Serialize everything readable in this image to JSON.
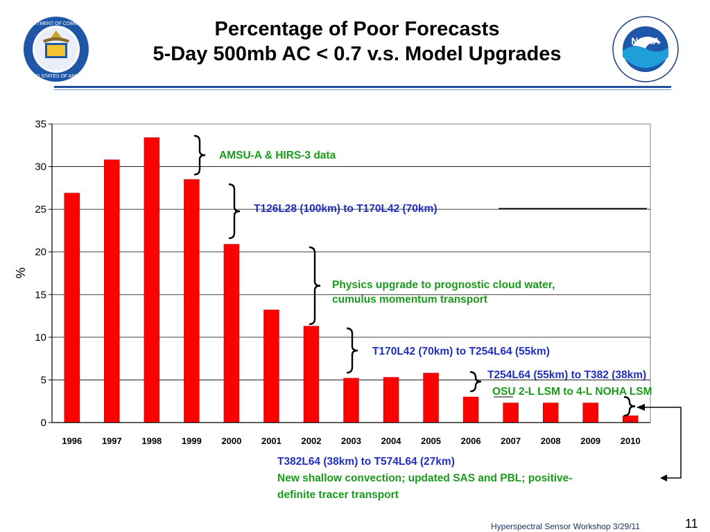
{
  "slide": {
    "title_line1": "Percentage of Poor Forecasts",
    "title_line2": "5-Day 500mb AC < 0.7 v.s. Model Upgrades",
    "footer": "Hyperspectral Sensor Workshop 3/29/11",
    "page_number": "11",
    "logo_left": {
      "name": "department-of-commerce-seal",
      "text": "DEPARTMENT OF COMMERCE · UNITED STATES OF AMERICA"
    },
    "logo_right": {
      "name": "noaa-logo",
      "text": "NOAA"
    }
  },
  "chart_data": {
    "type": "bar",
    "categories": [
      "1996",
      "1997",
      "1998",
      "1999",
      "2000",
      "2001",
      "2002",
      "2003",
      "2004",
      "2005",
      "2006",
      "2007",
      "2008",
      "2009",
      "2010"
    ],
    "values": [
      26.9,
      30.8,
      33.4,
      28.5,
      20.9,
      13.2,
      11.3,
      5.2,
      5.3,
      5.8,
      3.0,
      2.3,
      2.3,
      2.3,
      0.8
    ],
    "ylabel": "%",
    "xlabel": "",
    "ylim": [
      0,
      35
    ],
    "yticks": [
      "0",
      "5",
      "10",
      "15",
      "20",
      "25",
      "30",
      "35"
    ],
    "grid": true,
    "bar_color": "#ff0000",
    "annotations": [
      {
        "text": "AMSU-A & HIRS-3 data",
        "color": "#1a9a1a"
      },
      {
        "text": "T126L28 (100km) to T170L42  (70km)",
        "color": "#1f2fbf"
      },
      {
        "text": "Physics upgrade to prognostic cloud water,",
        "color": "#1a9a1a"
      },
      {
        "text": "cumulus momentum transport",
        "color": "#1a9a1a"
      },
      {
        "text": "T170L42 (70km) to T254L64  (55km)",
        "color": "#1f2fbf"
      },
      {
        "text": "T254L64 (55km) to T382 (38km)",
        "color": "#1f2fbf"
      },
      {
        "text": "OSU 2-L LSM to 4-L NOHA LSM",
        "color": "#1a9a1a"
      },
      {
        "text": "T382L64 (38km) to T574L64 (27km)",
        "color": "#1f2fbf"
      },
      {
        "text": "New shallow convection; updated SAS and PBL; positive-",
        "color": "#1a9a1a"
      },
      {
        "text": "definite tracer transport",
        "color": "#1a9a1a"
      }
    ]
  }
}
